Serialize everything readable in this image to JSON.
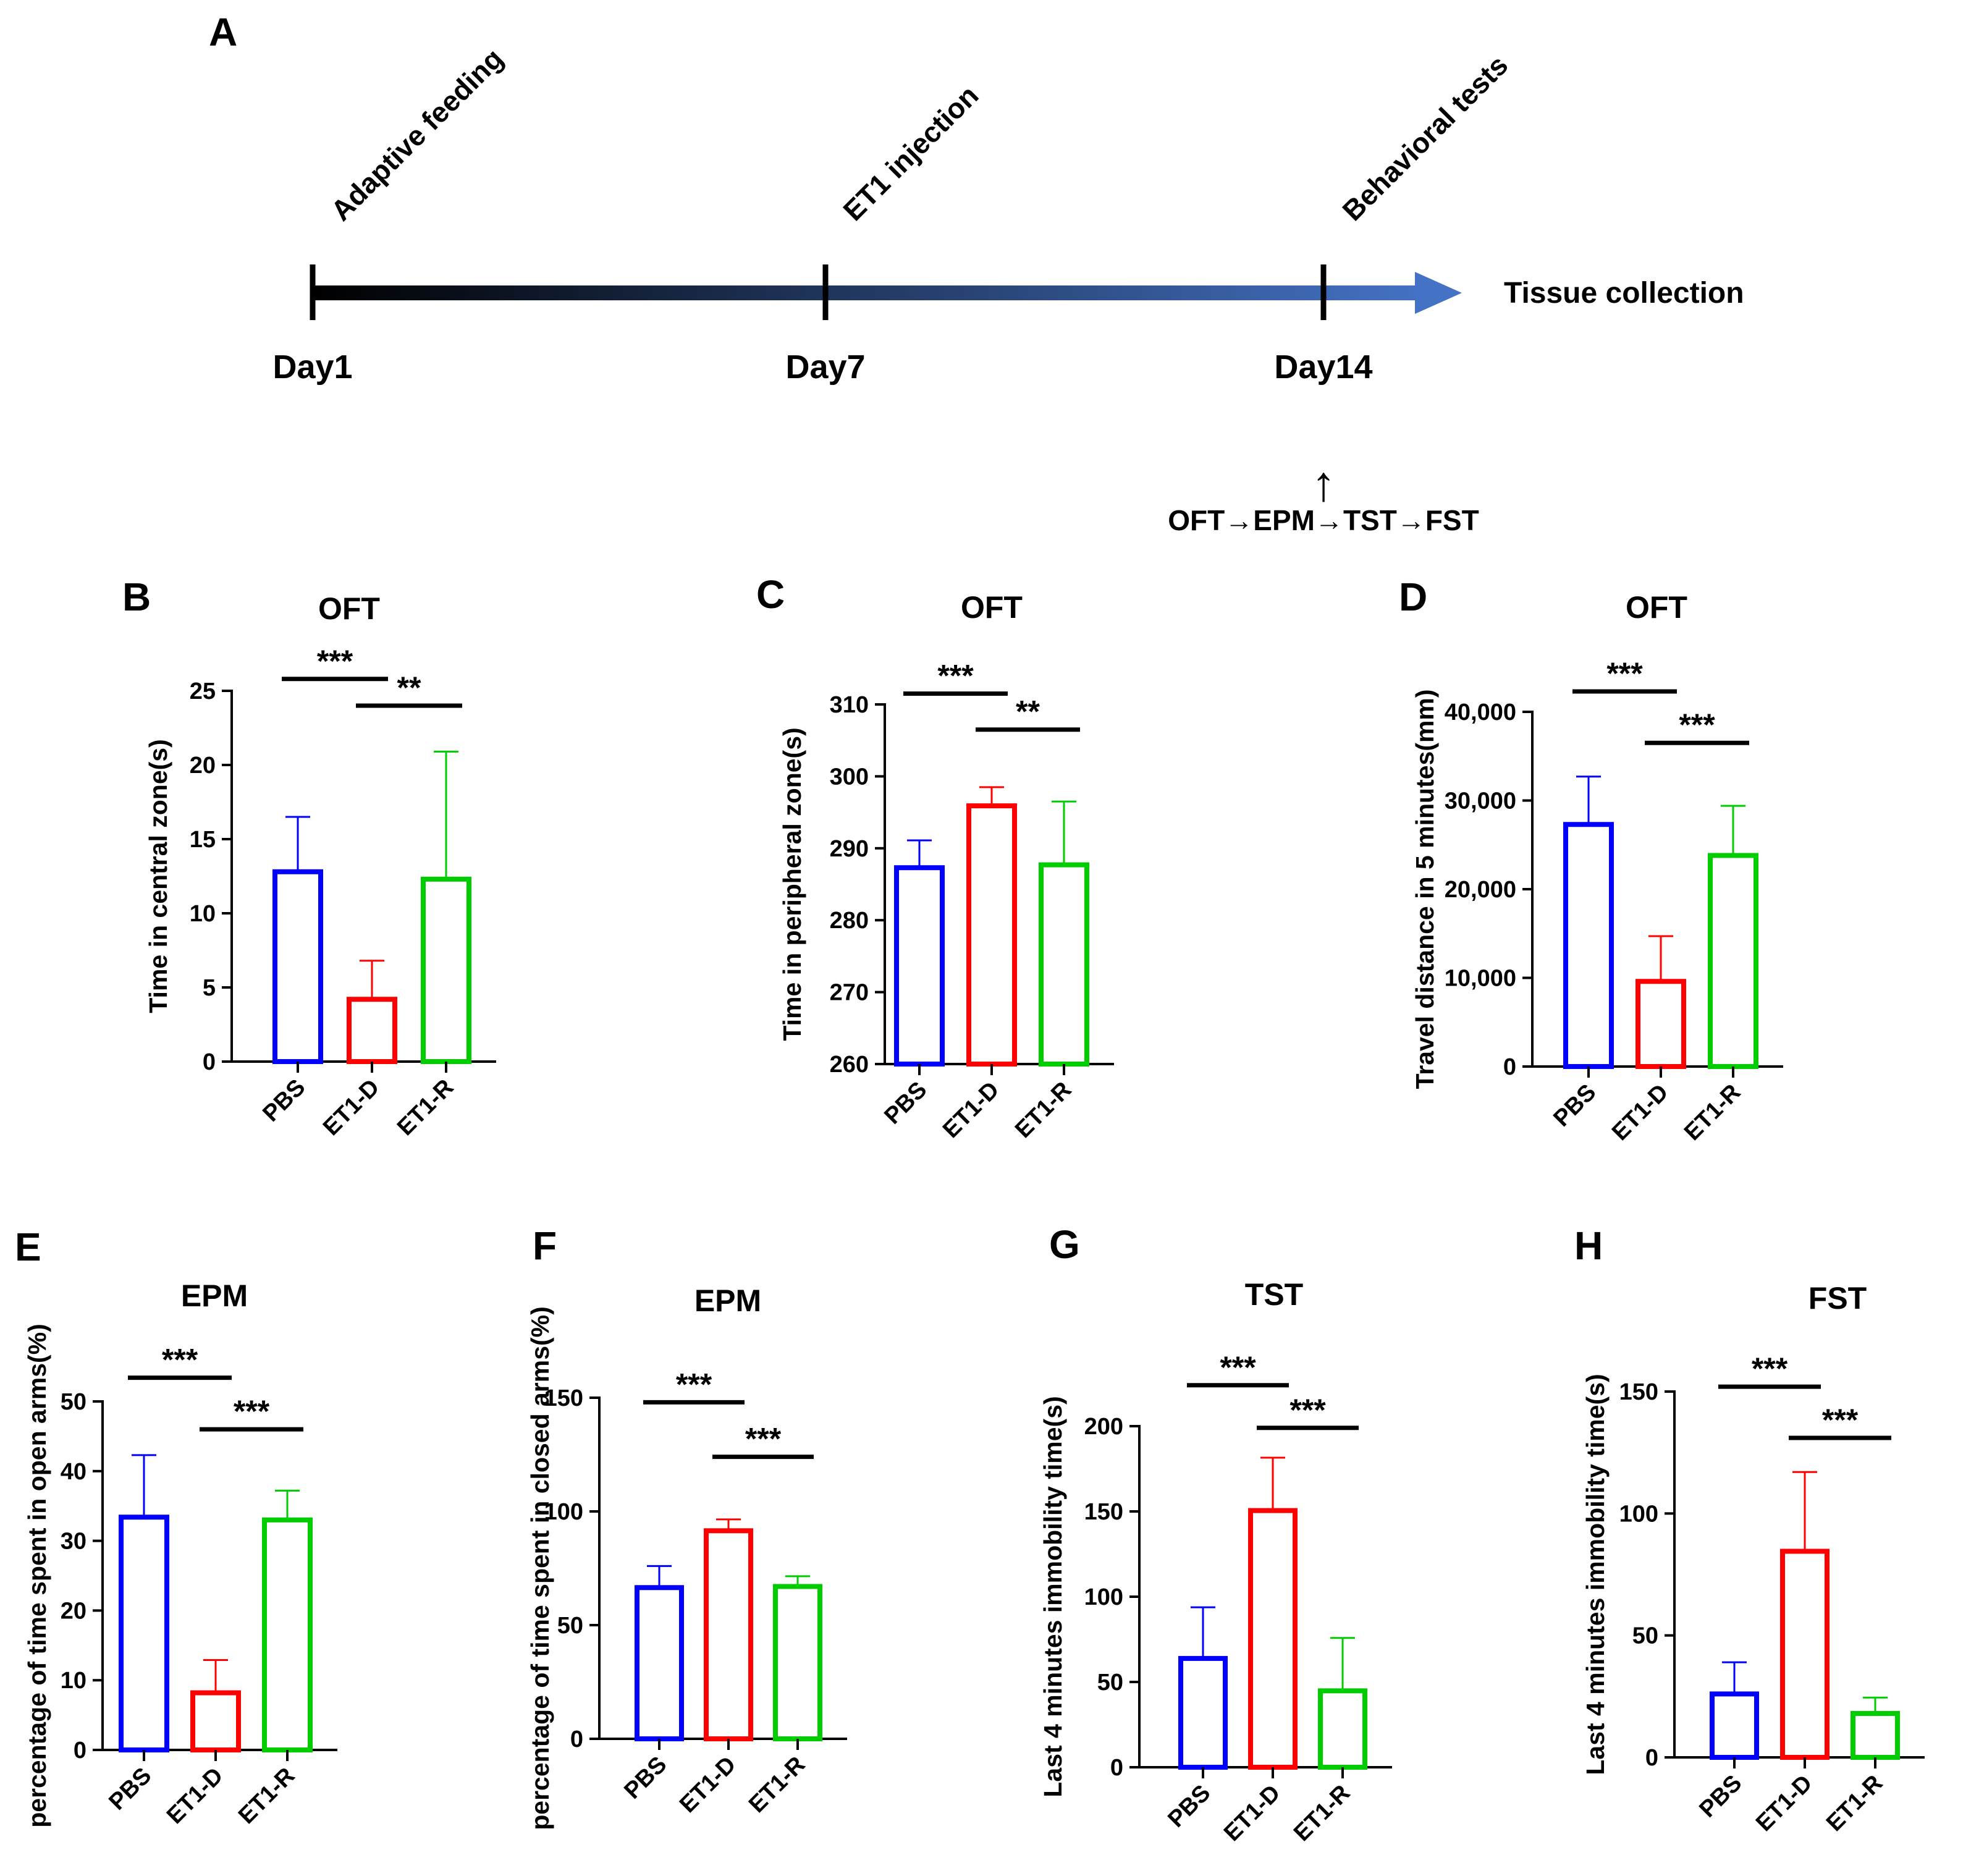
{
  "panel_a": {
    "letter": "A",
    "events": [
      "Adaptive feeding",
      "ET1 injection",
      "Behavioral tests"
    ],
    "days": [
      "Day1",
      "Day7",
      "Day14"
    ],
    "end_label": "Tissue collection",
    "up_arrow": "↑",
    "sequence": "OFT→EPM→TST→FST",
    "colors": {
      "start": "#000000",
      "end": "#4472c4"
    }
  },
  "chart_data": [
    {
      "panel": "B",
      "type": "bar",
      "title": "OFT",
      "ylabel": "Time in central zone(s)",
      "categories": [
        "PBS",
        "ET1-D",
        "ET1-R"
      ],
      "values": [
        12.8,
        4.2,
        12.3
      ],
      "errors": [
        3.7,
        2.6,
        8.6
      ],
      "ylim": [
        0,
        25
      ],
      "yticks": [
        "0",
        "5",
        "10",
        "15",
        "20",
        "25"
      ],
      "ytick_values": [
        0,
        5,
        10,
        15,
        20,
        25
      ],
      "colors": [
        "#0000ff",
        "#ff0000",
        "#00cc00"
      ],
      "significance": [
        {
          "from": 0,
          "to": 1,
          "label": "***",
          "y": 25.8
        },
        {
          "from": 1,
          "to": 2,
          "label": "**",
          "y": 24.0
        }
      ]
    },
    {
      "panel": "C",
      "type": "bar",
      "title": "OFT",
      "ylabel": "Time in peripheral zone(s)",
      "categories": [
        "PBS",
        "ET1-D",
        "ET1-R"
      ],
      "values": [
        287.3,
        295.9,
        287.7
      ],
      "errors": [
        3.8,
        2.6,
        8.8
      ],
      "ylim": [
        260,
        310
      ],
      "yticks": [
        "260",
        "270",
        "280",
        "290",
        "300",
        "310"
      ],
      "ytick_values": [
        260,
        270,
        280,
        290,
        300,
        310
      ],
      "colors": [
        "#0000ff",
        "#ff0000",
        "#00cc00"
      ],
      "significance": [
        {
          "from": 0,
          "to": 1,
          "label": "***",
          "y": 311.5
        },
        {
          "from": 1,
          "to": 2,
          "label": "**",
          "y": 306.5
        }
      ]
    },
    {
      "panel": "D",
      "type": "bar",
      "title": "OFT",
      "ylabel": "Travel distance in 5 minutes(mm)",
      "categories": [
        "PBS",
        "ET1-D",
        "ET1-R"
      ],
      "values": [
        27300,
        9600,
        23800
      ],
      "errors": [
        5400,
        5100,
        5600
      ],
      "ylim": [
        0,
        40000
      ],
      "yticks": [
        "0",
        "10,000",
        "20,000",
        "30,000",
        "40,000"
      ],
      "ytick_values": [
        0,
        10000,
        20000,
        30000,
        40000
      ],
      "colors": [
        "#0000ff",
        "#ff0000",
        "#00cc00"
      ],
      "significance": [
        {
          "from": 0,
          "to": 1,
          "label": "***",
          "y": 42300
        },
        {
          "from": 1,
          "to": 2,
          "label": "***",
          "y": 36500
        }
      ]
    },
    {
      "panel": "E",
      "type": "bar",
      "title": "EPM",
      "ylabel": "percentage of time spent in open arms(%)",
      "categories": [
        "PBS",
        "ET1-D",
        "ET1-R"
      ],
      "values": [
        33.4,
        8.2,
        33.0
      ],
      "errors": [
        8.9,
        4.7,
        4.2
      ],
      "ylim": [
        0,
        50
      ],
      "yticks": [
        "0",
        "10",
        "20",
        "30",
        "40",
        "50"
      ],
      "ytick_values": [
        0,
        10,
        20,
        30,
        40,
        50
      ],
      "colors": [
        "#0000ff",
        "#ff0000",
        "#00cc00"
      ],
      "significance": [
        {
          "from": 0,
          "to": 1,
          "label": "***",
          "y": 53.4
        },
        {
          "from": 1,
          "to": 2,
          "label": "***",
          "y": 46.0
        }
      ]
    },
    {
      "panel": "F",
      "type": "bar",
      "title": "EPM",
      "ylabel": "percentage of time spent in closed arms(%)",
      "categories": [
        "PBS",
        "ET1-D",
        "ET1-R"
      ],
      "values": [
        66.5,
        91.5,
        67.0
      ],
      "errors": [
        9.5,
        5.0,
        4.5
      ],
      "ylim": [
        0,
        150
      ],
      "yticks": [
        "0",
        "50",
        "100",
        "150"
      ],
      "ytick_values": [
        0,
        50,
        100,
        150
      ],
      "colors": [
        "#0000ff",
        "#ff0000",
        "#00cc00"
      ],
      "significance": [
        {
          "from": 0,
          "to": 1,
          "label": "***",
          "y": 148
        },
        {
          "from": 1,
          "to": 2,
          "label": "***",
          "y": 124
        }
      ]
    },
    {
      "panel": "G",
      "type": "bar",
      "title": "TST",
      "ylabel": "Last 4 minutes immobility time(s)",
      "categories": [
        "PBS",
        "ET1-D",
        "ET1-R"
      ],
      "values": [
        63.8,
        150.5,
        44.8
      ],
      "errors": [
        30.0,
        31.0,
        31.0
      ],
      "ylim": [
        0,
        200
      ],
      "yticks": [
        "0",
        "50",
        "100",
        "150",
        "200"
      ],
      "ytick_values": [
        0,
        50,
        100,
        150,
        200
      ],
      "colors": [
        "#0000ff",
        "#ff0000",
        "#00cc00"
      ],
      "significance": [
        {
          "from": 0,
          "to": 1,
          "label": "***",
          "y": 224
        },
        {
          "from": 1,
          "to": 2,
          "label": "***",
          "y": 199
        }
      ]
    },
    {
      "panel": "H",
      "type": "bar",
      "title": "FST",
      "ylabel": "Last 4 minutes immobility time(s)",
      "categories": [
        "PBS",
        "ET1-D",
        "ET1-R"
      ],
      "values": [
        26.0,
        84.5,
        18.0
      ],
      "errors": [
        13.0,
        32.5,
        6.5
      ],
      "ylim": [
        0,
        150
      ],
      "yticks": [
        "0",
        "50",
        "100",
        "150"
      ],
      "ytick_values": [
        0,
        50,
        100,
        150
      ],
      "colors": [
        "#0000ff",
        "#ff0000",
        "#00cc00"
      ],
      "significance": [
        {
          "from": 0,
          "to": 1,
          "label": "***",
          "y": 152
        },
        {
          "from": 1,
          "to": 2,
          "label": "***",
          "y": 131
        }
      ]
    }
  ]
}
